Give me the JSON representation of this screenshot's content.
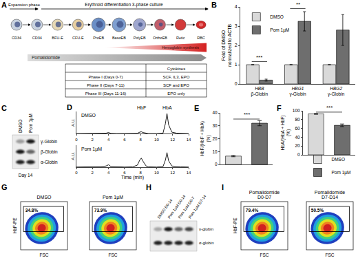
{
  "diagram": {
    "letter": "A",
    "expansion": "Expansion phase",
    "differentiation": "Erythroid differentiation 3-phase culture",
    "stages": [
      "CD34",
      "CD34",
      "BFU-E",
      "CFU-E",
      "ProEB",
      "BasoEB",
      "PolyEB",
      "OrthoEB",
      "Retic",
      "RBC"
    ],
    "hemoglobin": "Hemoglobin synthesis",
    "drug": "Pomalidomide",
    "table": {
      "header": "Cytokines",
      "rows": [
        [
          "Phase I (Days 0-7)",
          "SCF, IL3, EPO"
        ],
        [
          "Phase II (Days 7-11)",
          "SCF and EPO"
        ],
        [
          "Phase III (Days 11-16)",
          "EPO only"
        ]
      ]
    }
  },
  "chart_data": [
    {
      "letter": "B",
      "type": "bar",
      "categories": [
        "HBB\nβ-Globin",
        "HBG1\nγ-Globin",
        "HBG2\nγ-Globin"
      ],
      "series": [
        {
          "name": "DMSO",
          "color": "#d9d9d9",
          "values": [
            1,
            1,
            1
          ],
          "errors": [
            0,
            0,
            0
          ]
        },
        {
          "name": "Pom 1µM",
          "color": "#6e6e6e",
          "values": [
            0.2,
            3.25,
            2.8
          ],
          "errors": [
            0.05,
            0.5,
            0.8
          ]
        }
      ],
      "ylabel": "Fold of DMSO\nnormalized to ACTB",
      "ylim": [
        0,
        4
      ],
      "yticks": [
        0,
        1,
        2,
        3,
        4
      ],
      "legend": "top left",
      "significance": [
        {
          "category": "HBB\nβ-Globin",
          "text": "***"
        },
        {
          "category": "HBG1\nγ-Globin",
          "text": "**"
        }
      ]
    },
    {
      "letter": "D",
      "type": "line",
      "x": [
        0,
        1,
        2,
        3,
        3.7,
        4,
        4.3,
        5,
        6,
        7,
        7.6,
        7.9,
        8.1,
        8.3,
        8.7,
        9,
        10,
        10.8,
        11.1,
        11.3,
        11.5,
        11.9,
        12.5,
        13,
        14
      ],
      "series": [
        {
          "name": "DMSO",
          "color": "#000000",
          "values": [
            0.01,
            0.01,
            0.01,
            0.02,
            0.03,
            0.06,
            0.02,
            0.01,
            0.01,
            0.01,
            0.02,
            0.08,
            0.1,
            0.06,
            0.02,
            0.01,
            0.01,
            0.03,
            0.5,
            1.0,
            0.45,
            0.08,
            0.03,
            0.02,
            0.01
          ]
        },
        {
          "name": "Pom 1µM",
          "color": "#000000",
          "values": [
            0.01,
            0.01,
            0.01,
            0.03,
            0.06,
            0.12,
            0.04,
            0.02,
            0.01,
            0.02,
            0.1,
            0.35,
            0.45,
            0.3,
            0.06,
            0.02,
            0.01,
            0.03,
            0.35,
            0.72,
            0.32,
            0.06,
            0.03,
            0.02,
            0.01
          ]
        }
      ],
      "xlabel": "Time (min)",
      "ylabel": "A.U.",
      "xlim": [
        0,
        14
      ],
      "xticks": [
        0,
        2,
        4,
        6,
        8,
        10,
        12,
        14
      ],
      "ylim": [
        0,
        1.1
      ],
      "tick_labels": "x",
      "peak_labels": [
        {
          "text": "HbF",
          "x": 8.1
        },
        {
          "text": "HbA",
          "x": 11.3
        }
      ]
    },
    {
      "letter": "E",
      "type": "bar",
      "categories": [
        "DMSO",
        "Pom 1µM"
      ],
      "values": [
        6.5,
        32
      ],
      "errors": [
        0.5,
        2
      ],
      "colors": [
        "#d9d9d9",
        "#6e6e6e"
      ],
      "ylabel": "HbF/(HbF + HbA)\n(%)",
      "ylim": [
        0,
        40
      ],
      "yticks": [
        0,
        10,
        20,
        30,
        40
      ],
      "tick_labels": "y",
      "significance": "***"
    },
    {
      "letter": "F",
      "type": "bar",
      "categories": [
        "DMSO",
        "Pom 1µM"
      ],
      "values": [
        93,
        67
      ],
      "errors": [
        1,
        3
      ],
      "colors": [
        "#d9d9d9",
        "#6e6e6e"
      ],
      "ylabel": "HbA/(HbA + HbF)\n(%)",
      "ylim": [
        0,
        100
      ],
      "yticks": [
        0,
        20,
        40,
        60,
        80,
        100
      ],
      "tick_labels": "y",
      "legend": "bottom",
      "significance": "***"
    }
  ],
  "blots": [
    {
      "letter": "C",
      "lanes": [
        "DMSO",
        "Pom 1µM"
      ],
      "bands": [
        "γ-Globin",
        "β-Globin",
        "α-Globin"
      ],
      "intensity": [
        [
          0.35,
          0.95
        ],
        [
          0.95,
          0.6
        ],
        [
          0.9,
          0.9
        ]
      ],
      "note": "Day 14"
    },
    {
      "letter": "H",
      "lanes": [
        "DMSO D0-14",
        "Pom 1µM D0-14",
        "Pom 1µM D0-7",
        "Pom 1µM D7-14"
      ],
      "bands": [
        "γ-globin",
        "α-globin"
      ],
      "intensity": [
        [
          0.3,
          0.95,
          0.6,
          0.75
        ],
        [
          0.9,
          0.9,
          0.9,
          0.9
        ]
      ]
    }
  ],
  "flow": [
    {
      "letter": "G",
      "ylabel": "HbF-PE",
      "xlabel": "FSC",
      "plots": [
        {
          "title": "DMSO",
          "gate": "34.8%"
        },
        {
          "title": "Pom 1µM",
          "gate": "73.9%"
        }
      ]
    },
    {
      "letter": "I",
      "ylabel": "HbF-PE",
      "xlabel": "FSC",
      "plots": [
        {
          "title": "Pomalidomide\nD0-D7",
          "gate": "79.4%"
        },
        {
          "title": "Pomalidomide\nD7-D14",
          "gate": "50.5%"
        }
      ]
    }
  ]
}
